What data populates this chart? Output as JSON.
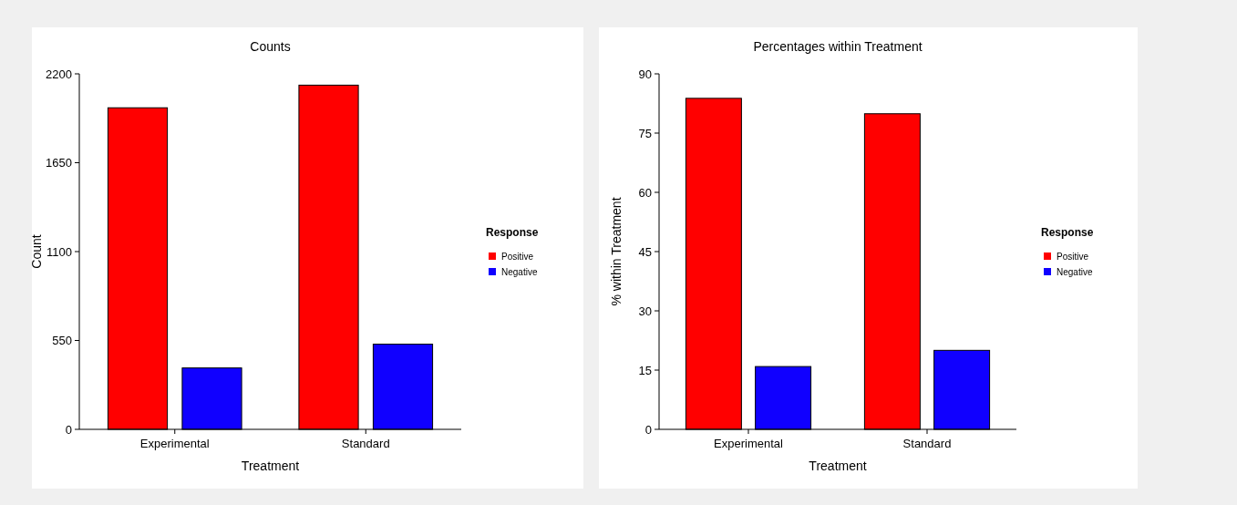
{
  "chart_data": [
    {
      "type": "bar",
      "title": "Counts",
      "xlabel": "Treatment",
      "ylabel": "Count",
      "legend_title": "Response",
      "categories": [
        "Experimental",
        "Standard"
      ],
      "series": [
        {
          "name": "Positive",
          "color": "#ff0000",
          "values": [
            1990,
            2130
          ]
        },
        {
          "name": "Negative",
          "color": "#1000ff",
          "values": [
            380,
            527
          ]
        }
      ],
      "ylim": [
        0,
        2200
      ],
      "yticks": [
        0,
        550,
        1100,
        1650,
        2200
      ],
      "legend": "right",
      "grid": false
    },
    {
      "type": "bar",
      "title": "Percentages within Treatment",
      "xlabel": "Treatment",
      "ylabel": "% within Treatment",
      "legend_title": "Response",
      "categories": [
        "Experimental",
        "Standard"
      ],
      "series": [
        {
          "name": "Positive",
          "color": "#ff0000",
          "values": [
            83.8,
            79.9
          ]
        },
        {
          "name": "Negative",
          "color": "#1000ff",
          "values": [
            15.9,
            20.0
          ]
        }
      ],
      "ylim": [
        0,
        90
      ],
      "yticks": [
        0,
        15,
        30,
        45,
        60,
        75,
        90
      ],
      "legend": "right",
      "grid": false
    }
  ]
}
